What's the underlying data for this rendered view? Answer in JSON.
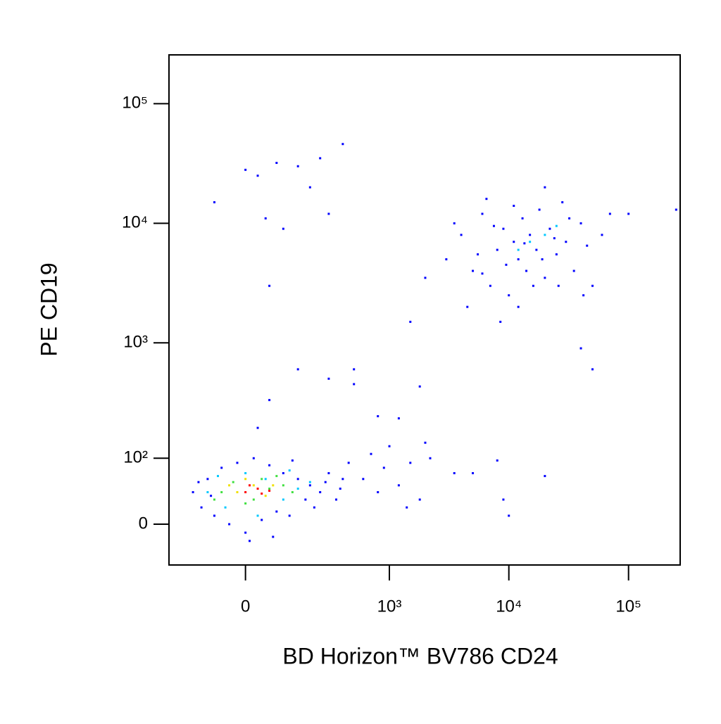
{
  "chart_data": {
    "type": "scatter",
    "x_label": "BD Horizon™ BV786 CD24",
    "y_label": "PE CD19",
    "xscale": "biexponential",
    "yscale": "biexponential",
    "xlim": [
      -260,
      270000
    ],
    "ylim": [
      -53,
      256000
    ],
    "xticks": [
      0,
      {
        "value": 1000,
        "label": "10³"
      },
      {
        "value": 10000,
        "label": "10⁴"
      },
      {
        "value": 100000,
        "label": "10⁵"
      }
    ],
    "yticks": [
      0,
      {
        "value": 100,
        "label": "10²"
      },
      {
        "value": 1000,
        "label": "10³"
      },
      {
        "value": 10000,
        "label": "10⁴"
      },
      {
        "value": 100000,
        "label": "10⁵"
      }
    ],
    "series": [
      {
        "color": "#0000ff",
        "x": [
          -150,
          -120,
          -100,
          -80,
          -60,
          -40,
          -20,
          0,
          20,
          40,
          60,
          80,
          100,
          120,
          150,
          180,
          200,
          250,
          300,
          350,
          400,
          450,
          -130,
          -90,
          10,
          70,
          130,
          220,
          280,
          380,
          600,
          700,
          800,
          900,
          1000,
          1200,
          1500,
          1800,
          2000,
          1400,
          3500,
          5000,
          8000,
          9000,
          10000,
          20000,
          2200,
          150,
          300,
          500,
          800,
          1200,
          1800,
          60,
          30,
          500,
          0,
          30,
          80,
          150,
          250,
          400,
          50,
          100,
          -80,
          200,
          300,
          60,
          3000,
          4000,
          5000,
          6000,
          7000,
          8000,
          9000,
          10000,
          11000,
          12000,
          13000,
          14000,
          15000,
          17000,
          18000,
          20000,
          22000,
          25000,
          28000,
          30000,
          35000,
          40000,
          45000,
          50000,
          60000,
          70000,
          4500,
          6500,
          8500,
          12000,
          20000,
          50000,
          40000,
          100000,
          250000,
          2000,
          1500,
          3500,
          5500,
          9500,
          16000,
          24000,
          32000,
          7500,
          11000,
          26000,
          19000,
          13500,
          6000,
          42000
        ],
        "y": [
          40,
          20,
          60,
          10,
          80,
          0,
          90,
          -10,
          100,
          5,
          85,
          15,
          70,
          10,
          60,
          30,
          50,
          40,
          70,
          30,
          60,
          90,
          55,
          35,
          -20,
          -15,
          95,
          20,
          55,
          45,
          60,
          110,
          40,
          80,
          130,
          50,
          90,
          30,
          140,
          20,
          70,
          70,
          95,
          30,
          10,
          65,
          100,
          600,
          500,
          450,
          240,
          230,
          430,
          330,
          190,
          600,
          28000,
          25000,
          32000,
          30000,
          35000,
          46000,
          11000,
          9000,
          15000,
          20000,
          12000,
          3000,
          5000,
          8000,
          4000,
          12000,
          3000,
          6000,
          9000,
          2500,
          7000,
          5000,
          11000,
          4000,
          8000,
          6000,
          13000,
          3500,
          9000,
          5500,
          15000,
          7000,
          4000,
          10000,
          6500,
          3000,
          8000,
          12000,
          2000,
          16000,
          1500,
          2000,
          20000,
          600,
          900,
          12000,
          13000,
          3500,
          1500,
          10000,
          5500,
          4500,
          3000,
          7500,
          11000,
          9500,
          14000,
          3000,
          5000,
          6800,
          3800,
          2500
        ]
      },
      {
        "color": "#00c8ff",
        "x": [
          -100,
          -50,
          0,
          50,
          100,
          150,
          -70,
          200,
          30,
          120,
          12000,
          20000,
          15000,
          25000
        ],
        "y": [
          40,
          20,
          70,
          60,
          30,
          45,
          65,
          55,
          10,
          75,
          6000,
          8000,
          7000,
          9500
        ]
      },
      {
        "color": "#40e040",
        "x": [
          -60,
          -30,
          20,
          60,
          100,
          0,
          -80,
          80,
          40,
          130
        ],
        "y": [
          40,
          55,
          30,
          45,
          50,
          25,
          30,
          65,
          60,
          40
        ]
      },
      {
        "color": "#f0e000",
        "x": [
          -20,
          20,
          50,
          0,
          70,
          -40
        ],
        "y": [
          40,
          50,
          35,
          60,
          50,
          50
        ]
      },
      {
        "color": "#ff0000",
        "x": [
          0,
          30,
          40,
          10,
          60
        ],
        "y": [
          40,
          45,
          38,
          50,
          42
        ]
      }
    ]
  }
}
